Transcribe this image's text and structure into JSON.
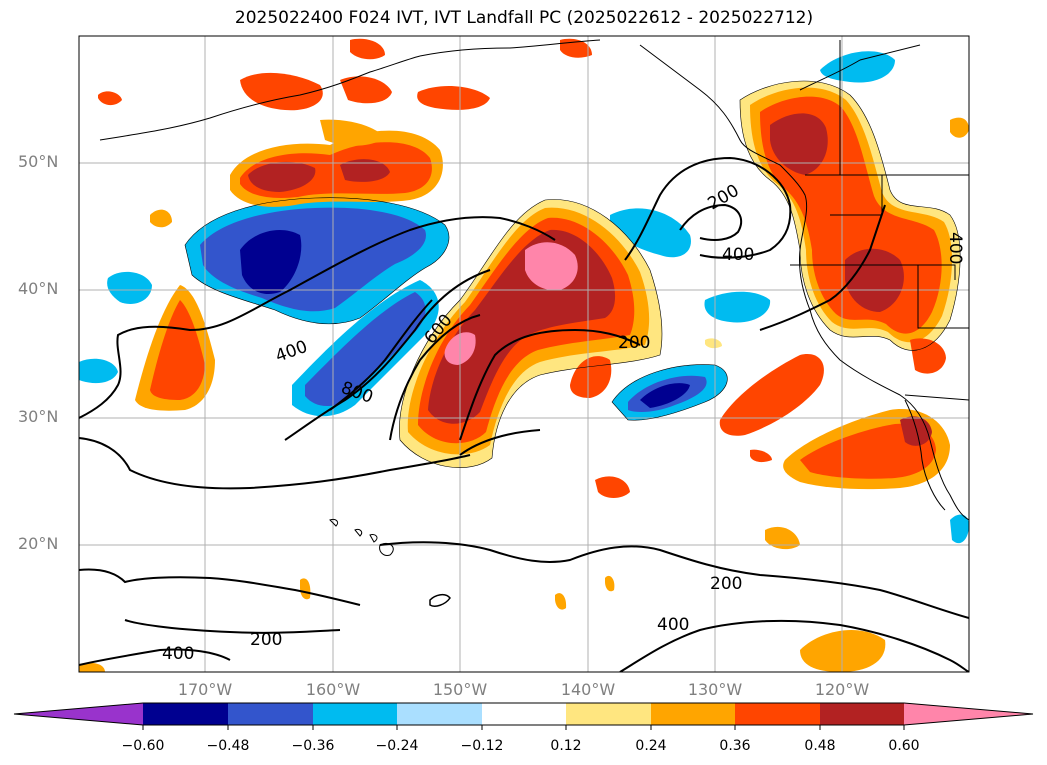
{
  "title": "2025022400 F024 IVT, IVT Landfall PC (2025022612 - 2025022712)",
  "lat_labels": [
    "50°N",
    "40°N",
    "30°N",
    "20°N"
  ],
  "lon_labels": [
    "170°W",
    "160°W",
    "150°W",
    "140°W",
    "130°W",
    "120°W"
  ],
  "contour_labels": [
    "200",
    "400",
    "400",
    "600",
    "800",
    "200",
    "200",
    "400",
    "200",
    "400",
    "400"
  ],
  "colorbar": {
    "ticks": [
      "−0.60",
      "−0.48",
      "−0.36",
      "−0.24",
      "−0.12",
      "0.12",
      "0.24",
      "0.36",
      "0.48",
      "0.60"
    ],
    "colors": [
      "#9933cc",
      "#000090",
      "#3355cc",
      "#00bbf0",
      "#aadfff",
      "#ffffff",
      "#ffe680",
      "#ffa500",
      "#ff4500",
      "#b22222",
      "#ff85aa"
    ]
  }
}
